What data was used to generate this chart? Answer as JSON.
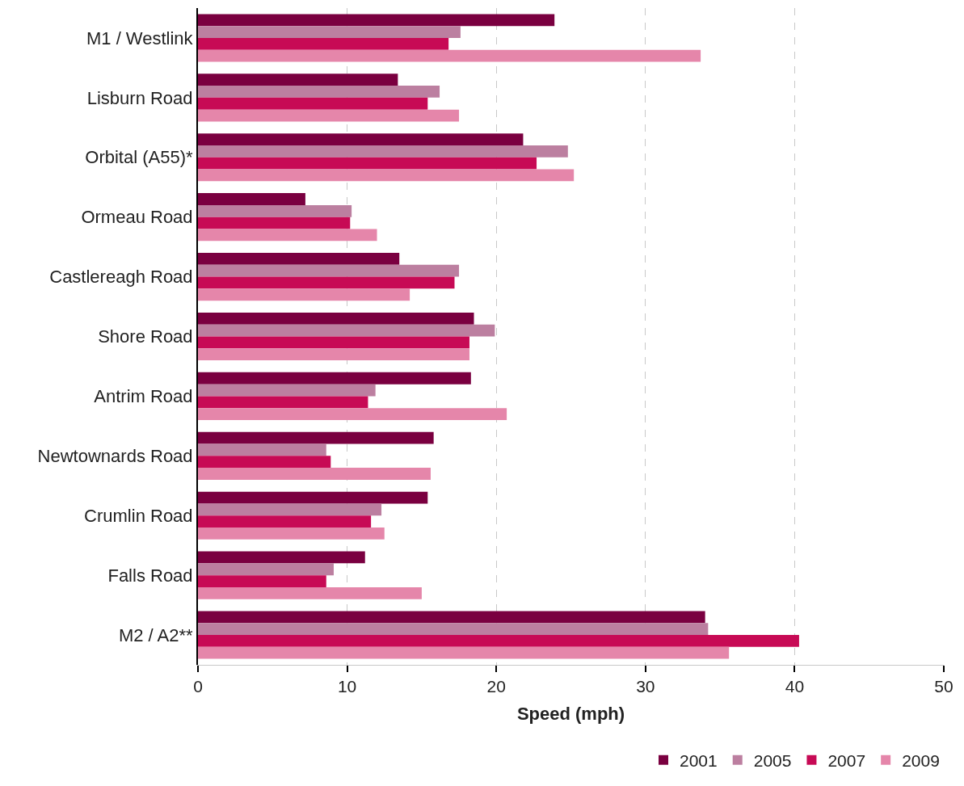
{
  "chart_data": {
    "type": "bar",
    "orientation": "horizontal",
    "xlabel": "Speed (mph)",
    "categories": [
      "M1 / Westlink",
      "Lisburn Road",
      "Orbital (A55)*",
      "Ormeau Road",
      "Castlereagh Road",
      "Shore Road",
      "Antrim Road",
      "Newtownards Road",
      "Crumlin Road",
      "Falls Road",
      "M2 / A2**"
    ],
    "series": [
      {
        "name": "2001",
        "color": "#7a0040",
        "values": [
          23.9,
          13.4,
          21.8,
          7.2,
          13.5,
          18.5,
          18.3,
          15.8,
          15.4,
          11.2,
          34.0
        ]
      },
      {
        "name": "2005",
        "color": "#bc7fa0",
        "values": [
          17.6,
          16.2,
          24.8,
          10.3,
          17.5,
          19.9,
          11.9,
          8.6,
          12.3,
          9.1,
          34.2
        ]
      },
      {
        "name": "2007",
        "color": "#c70a55",
        "values": [
          16.8,
          15.4,
          22.7,
          10.2,
          17.2,
          18.2,
          11.4,
          8.9,
          11.6,
          8.6,
          40.3
        ]
      },
      {
        "name": "2009",
        "color": "#e586aa",
        "values": [
          33.7,
          17.5,
          25.2,
          12.0,
          14.2,
          18.2,
          20.7,
          15.6,
          12.5,
          15.0,
          35.6
        ]
      }
    ],
    "xlim": [
      0,
      50
    ],
    "xticks": [
      0,
      10,
      20,
      30,
      40,
      50
    ],
    "grid": "x",
    "legend": "bottom right"
  }
}
